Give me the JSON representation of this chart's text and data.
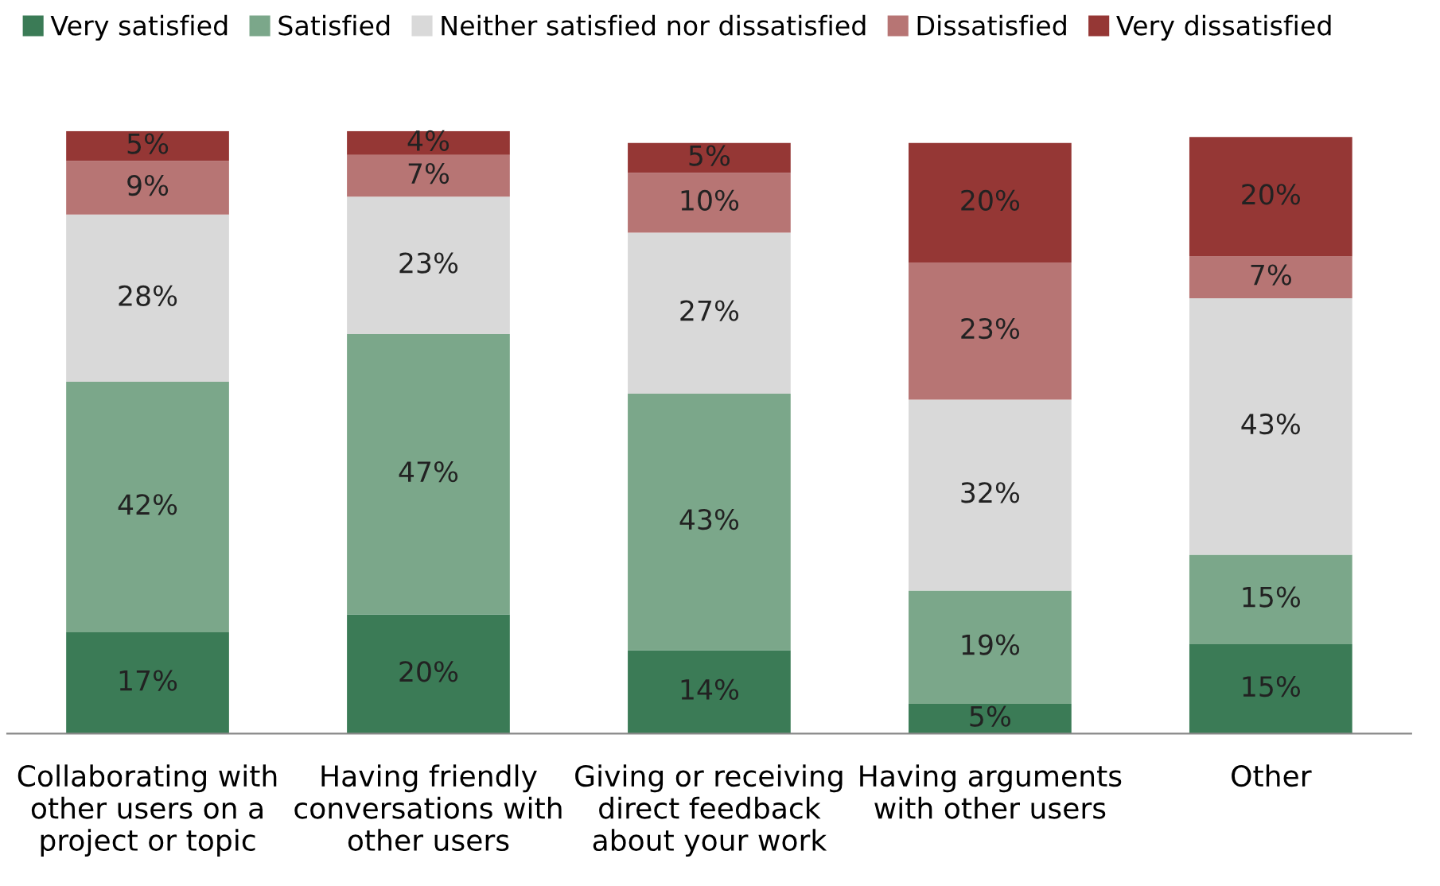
{
  "chart_data": {
    "type": "bar",
    "stacked": true,
    "legend": "top left",
    "grid": false,
    "categories": [
      "Collaborating with\nother users on a\nproject or topic",
      "Having friendly\nconversations with\nother users",
      "Giving or receiving\ndirect feedback\nabout your work",
      "Having arguments\nwith other users",
      "Other"
    ],
    "series": [
      {
        "name": "Very satisfied",
        "color": "#3b7b56",
        "values": [
          17,
          20,
          14,
          5,
          15
        ],
        "value_labels": [
          "17%",
          "20%",
          "14%",
          "5%",
          "15%"
        ]
      },
      {
        "name": "Satisfied",
        "color": "#7ba78a",
        "values": [
          42,
          47,
          43,
          19,
          15
        ],
        "value_labels": [
          "42%",
          "47%",
          "43%",
          "19%",
          "15%"
        ]
      },
      {
        "name": "Neither satisfied nor dissatisfied",
        "color": "#d9d9d9",
        "values": [
          28,
          23,
          27,
          32,
          43
        ],
        "value_labels": [
          "28%",
          "23%",
          "27%",
          "32%",
          "43%"
        ]
      },
      {
        "name": "Dissatisfied",
        "color": "#b77574",
        "values": [
          9,
          7,
          10,
          23,
          7
        ],
        "value_labels": [
          "9%",
          "7%",
          "10%",
          "23%",
          "7%"
        ]
      },
      {
        "name": "Very dissatisfied",
        "color": "#953735",
        "values": [
          5,
          4,
          5,
          20,
          20
        ],
        "value_labels": [
          "5%",
          "4%",
          "5%",
          "20%",
          "20%"
        ]
      }
    ]
  }
}
